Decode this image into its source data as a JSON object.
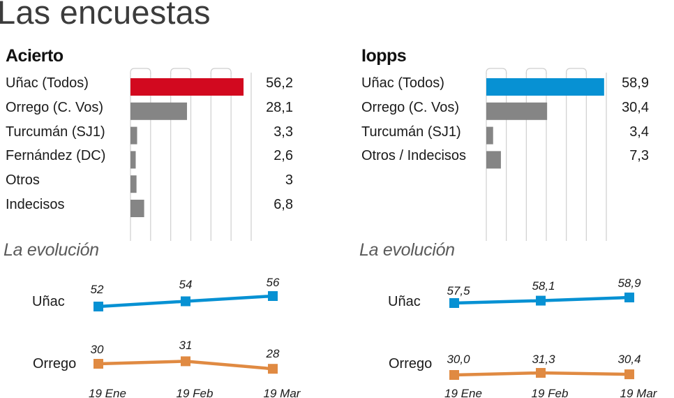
{
  "page": {
    "title": "Las encuestas"
  },
  "chart_data": [
    {
      "type": "bar",
      "orientation": "horizontal",
      "title": "Acierto",
      "categories": [
        "Uñac (Todos)",
        "Orrego (C. Vos)",
        "Turcumán (SJ1)",
        "Fernández (DC)",
        "Otros",
        "Indecisos"
      ],
      "values": [
        56.2,
        28.1,
        3.3,
        2.6,
        3,
        6.8
      ],
      "value_labels": [
        "56,2",
        "28,1",
        "3,3",
        "2,6",
        "3",
        "6,8"
      ],
      "highlight_color": "#d2091f",
      "bar_color": "#858585",
      "xlim": [
        0,
        60
      ],
      "grid": true
    },
    {
      "type": "bar",
      "orientation": "horizontal",
      "title": "Iopps",
      "categories": [
        "Uñac (Todos)",
        "Orrego (C. Vos)",
        "Turcumán (SJ1)",
        "Otros / Indecisos"
      ],
      "values": [
        58.9,
        30.4,
        3.4,
        7.3
      ],
      "value_labels": [
        "58,9",
        "30,4",
        "3,4",
        "7,3"
      ],
      "highlight_color": "#0791d3",
      "bar_color": "#858585",
      "xlim": [
        0,
        60
      ],
      "grid": true
    },
    {
      "type": "line",
      "title": "La evolución",
      "source": "Acierto",
      "x": [
        "19 Ene",
        "19 Feb",
        "19 Mar"
      ],
      "series": [
        {
          "name": "Uñac",
          "values": [
            52,
            54,
            56
          ],
          "labels": [
            "52",
            "54",
            "56"
          ],
          "color": "#0791d3"
        },
        {
          "name": "Orrego",
          "values": [
            30,
            31,
            28
          ],
          "labels": [
            "30",
            "31",
            "28"
          ],
          "color": "#e08a42"
        }
      ]
    },
    {
      "type": "line",
      "title": "La evolución",
      "source": "Iopps",
      "x": [
        "19 Ene",
        "19 Feb",
        "19 Mar"
      ],
      "series": [
        {
          "name": "Uñac",
          "values": [
            57.5,
            58.1,
            58.9
          ],
          "labels": [
            "57,5",
            "58,1",
            "58,9"
          ],
          "color": "#0791d3"
        },
        {
          "name": "Orrego",
          "values": [
            30.0,
            31.3,
            30.4
          ],
          "labels": [
            "30,0",
            "31,3",
            "30,4"
          ],
          "color": "#e08a42"
        }
      ]
    }
  ]
}
